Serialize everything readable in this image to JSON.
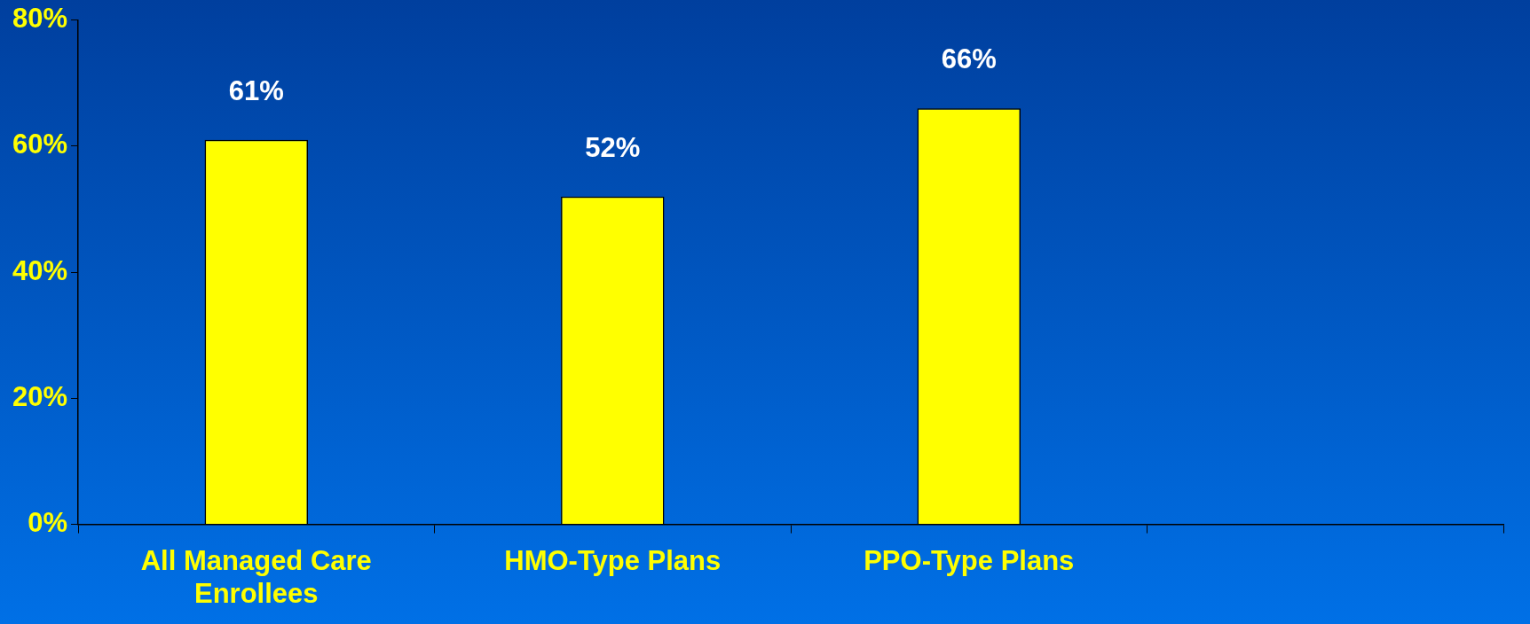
{
  "chart_data": {
    "type": "bar",
    "categories": [
      "All Managed Care Enrollees",
      "HMO-Type Plans",
      "PPO-Type Plans",
      null
    ],
    "values": [
      61,
      52,
      66,
      null
    ],
    "color": "#ffff00",
    "value_labels": [
      "61%",
      "52%",
      "66%",
      null
    ],
    "ylim": [
      0,
      80
    ],
    "yticks": [
      {
        "value": 0,
        "label": "0%"
      },
      {
        "value": 20,
        "label": "20%"
      },
      {
        "value": 40,
        "label": "40%"
      },
      {
        "value": 60,
        "label": "60%"
      },
      {
        "value": 80,
        "label": "80%"
      }
    ]
  }
}
